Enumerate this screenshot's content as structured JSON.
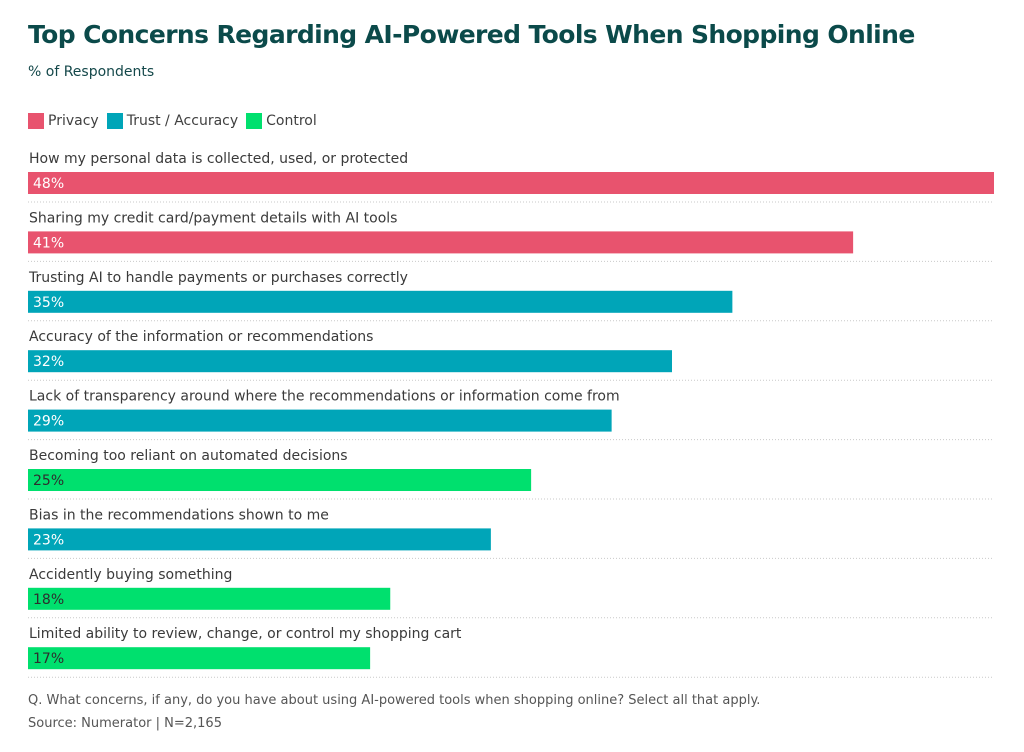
{
  "title": "Top Concerns Regarding AI-Powered Tools When Shopping Online",
  "subtitle": "% of Respondents",
  "legend": [
    {
      "label": "Privacy",
      "color": "#e8536e"
    },
    {
      "label": "Trust / Accuracy",
      "color": "#00a5b8"
    },
    {
      "label": "Control",
      "color": "#00e06e"
    }
  ],
  "chart_data": {
    "type": "bar",
    "orientation": "horizontal",
    "xlim": [
      0,
      48
    ],
    "grid": false,
    "legend_position": "top-left",
    "bars": [
      {
        "category": "How my personal data is collected, used, or protected",
        "value": 48,
        "value_label": "48%",
        "group": "Privacy",
        "color": "#e8536e"
      },
      {
        "category": "Sharing my credit card/payment details with AI tools",
        "value": 41,
        "value_label": "41%",
        "group": "Privacy",
        "color": "#e8536e"
      },
      {
        "category": "Trusting AI to handle payments or purchases correctly",
        "value": 35,
        "value_label": "35%",
        "group": "Trust / Accuracy",
        "color": "#00a5b8"
      },
      {
        "category": "Accuracy of the information or recommendations",
        "value": 32,
        "value_label": "32%",
        "group": "Trust / Accuracy",
        "color": "#00a5b8"
      },
      {
        "category": "Lack of transparency around where the recommendations or information come from",
        "value": 29,
        "value_label": "29%",
        "group": "Trust / Accuracy",
        "color": "#00a5b8"
      },
      {
        "category": "Becoming too reliant on automated decisions",
        "value": 25,
        "value_label": "25%",
        "group": "Control",
        "color": "#00e06e"
      },
      {
        "category": "Bias in the recommendations shown to me",
        "value": 23,
        "value_label": "23%",
        "group": "Trust / Accuracy",
        "color": "#00a5b8"
      },
      {
        "category": "Accidently buying something",
        "value": 18,
        "value_label": "18%",
        "group": "Control",
        "color": "#00e06e"
      },
      {
        "category": "Limited ability to review, change, or control my shopping cart",
        "value": 17,
        "value_label": "17%",
        "group": "Control",
        "color": "#00e06e"
      }
    ]
  },
  "footnote": {
    "question": "Q. What concerns, if any, do you have about using AI-powered tools when shopping online? Select all that apply.",
    "source": "Source: Numerator | N=2,165"
  }
}
